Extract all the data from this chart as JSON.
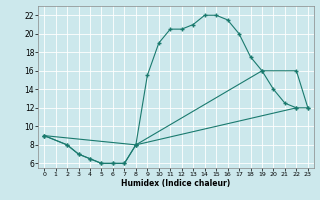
{
  "xlabel": "Humidex (Indice chaleur)",
  "bg_color": "#cce8ec",
  "grid_color": "#b0d4d8",
  "line_color": "#1a7a6e",
  "xlim": [
    -0.5,
    23.5
  ],
  "ylim": [
    5.5,
    23
  ],
  "xticks": [
    0,
    1,
    2,
    3,
    4,
    5,
    6,
    7,
    8,
    9,
    10,
    11,
    12,
    13,
    14,
    15,
    16,
    17,
    18,
    19,
    20,
    21,
    22,
    23
  ],
  "yticks": [
    6,
    8,
    10,
    12,
    14,
    16,
    18,
    20,
    22
  ],
  "line1_x": [
    0,
    2,
    3,
    4,
    5,
    6,
    7,
    8,
    9,
    10,
    11,
    12,
    13,
    14,
    15,
    16,
    17,
    18,
    19,
    20,
    21,
    22
  ],
  "line1_y": [
    9,
    8,
    7,
    6.5,
    6,
    6,
    6,
    8,
    15.5,
    19,
    20.5,
    20.5,
    21,
    22,
    22,
    21.5,
    20,
    17.5,
    16,
    14,
    12.5,
    12
  ],
  "line2_x": [
    0,
    2,
    3,
    4,
    5,
    6,
    7,
    8,
    22,
    23
  ],
  "line2_y": [
    9,
    8,
    7,
    6.5,
    6,
    6,
    6,
    8,
    12,
    12
  ],
  "line3_x": [
    0,
    8,
    19,
    22,
    23
  ],
  "line3_y": [
    9,
    8,
    16,
    16,
    12
  ]
}
